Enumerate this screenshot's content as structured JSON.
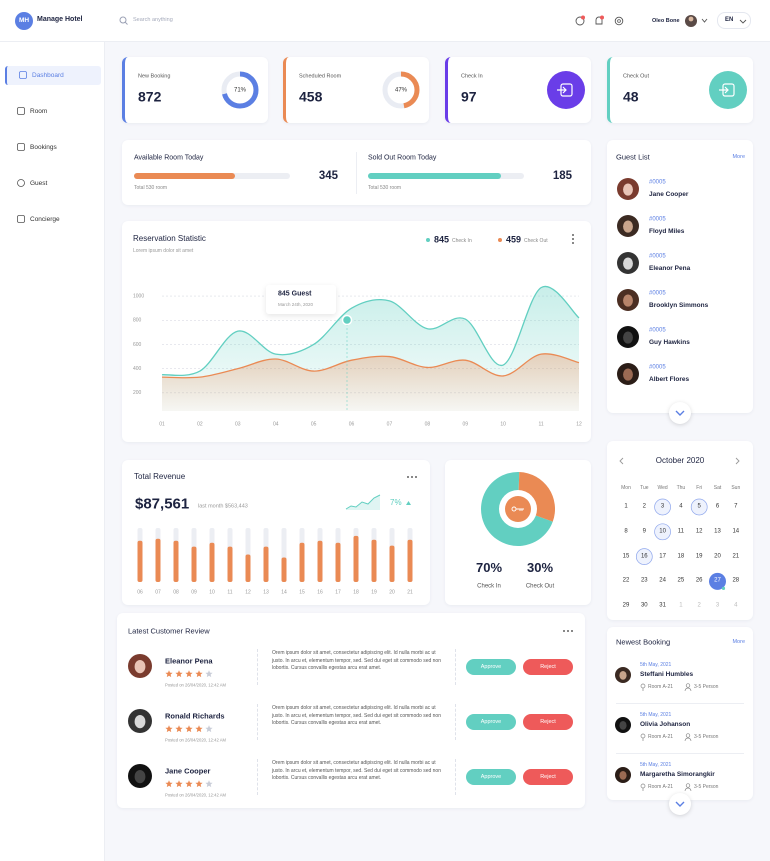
{
  "header": {
    "logo": "MH",
    "brand": "Manage Hotel",
    "search_placeholder": "Search anything",
    "user": "Oleo Bone",
    "language": "EN"
  },
  "sidebar": {
    "items": [
      "Dashboard",
      "Room",
      "Bookings",
      "Guest",
      "Concierge"
    ],
    "active": 0
  },
  "stats": [
    {
      "label": "New Booking",
      "value": 872,
      "percent": 71,
      "percent_label": "71%",
      "color": "#5b7fe3"
    },
    {
      "label": "Scheduled Room",
      "value": 458,
      "percent": 47,
      "percent_label": "47%",
      "color": "#ea8a54"
    },
    {
      "label": "Check In",
      "value": 97,
      "color": "#6a3de8"
    },
    {
      "label": "Check Out",
      "value": 48,
      "color": "#62cfc1"
    }
  ],
  "rooms": [
    {
      "title": "Available Room Today",
      "value": 345,
      "note": "Total 530 room",
      "fill": 65,
      "color": "#ea8a54"
    },
    {
      "title": "Sold Out Room Today",
      "value": 185,
      "note": "Total 530 room",
      "fill": 85,
      "color": "#62cfc1"
    }
  ],
  "reservation": {
    "type": "line",
    "title": "Reservation Statistic",
    "subtitle": "Lorem ipsum dolor sit amet",
    "categories": [
      "01",
      "02",
      "03",
      "04",
      "05",
      "06",
      "07",
      "08",
      "09",
      "10",
      "11",
      "12"
    ],
    "series": [
      {
        "name": "Check In",
        "total": 845,
        "color": "#62cfc1",
        "values": [
          350,
          380,
          710,
          520,
          600,
          900,
          960,
          730,
          810,
          430,
          1070,
          820
        ]
      },
      {
        "name": "Check Out",
        "total": 459,
        "color": "#ea8a54",
        "values": [
          330,
          330,
          400,
          480,
          380,
          470,
          500,
          410,
          470,
          340,
          520,
          450
        ]
      }
    ],
    "ylim": [
      50,
      1100
    ],
    "yticks": [
      200,
      400,
      600,
      800,
      1000
    ],
    "grid": true,
    "tooltip": {
      "title": "845 Guest",
      "date": "March 24th, 2020"
    }
  },
  "revenue": {
    "type": "bar",
    "title": "Total Revenue",
    "amount": "$87,561",
    "last_month": "last month $563,443",
    "change": "7%",
    "categories": [
      "06",
      "07",
      "08",
      "09",
      "10",
      "11",
      "12",
      "13",
      "14",
      "15",
      "16",
      "17",
      "18",
      "19",
      "20",
      "21"
    ],
    "values": [
      42,
      44,
      42,
      36,
      40,
      36,
      28,
      36,
      25,
      40,
      42,
      40,
      47,
      43,
      37,
      43
    ],
    "ylim": [
      0,
      55
    ],
    "color": "#ea8a54"
  },
  "occupancy": {
    "type": "pie",
    "categories": [
      "Check In",
      "Check Out"
    ],
    "values": [
      70,
      30
    ],
    "value_labels": [
      "70%",
      "30%"
    ],
    "colors": [
      "#62cfc1",
      "#ea8a54"
    ]
  },
  "reviews": {
    "title": "Latest Customer Review",
    "approve": "Approve",
    "reject": "Reject",
    "max_rating": 5,
    "items": [
      {
        "name": "Eleanor Pena",
        "rating": 4,
        "posted": "Posted on 26/04/2020, 12:42 AM",
        "text": "Orem ipsum dolor sit amet, consectetur adipiscing elit. Id nulla morbi ac ut justo. In arcu et, elementum tempor, sed. Sed dui eget sit commodo sed non lobortis. Cursus convallis egestas arcu erat amet."
      },
      {
        "name": "Ronald Richards",
        "rating": 4,
        "posted": "Posted on 26/04/2020, 12:42 AM",
        "text": "Orem ipsum dolor sit amet, consectetur adipiscing elit. Id nulla morbi ac ut justo. In arcu et, elementum tempor, sed. Sed dui eget sit commodo sed non lobortis. Cursus convallis egestas arcu erat amet."
      },
      {
        "name": "Jane Cooper",
        "rating": 4,
        "posted": "Posted on 26/04/2020, 12:42 AM",
        "text": "Orem ipsum dolor sit amet, consectetur adipiscing elit. Id nulla morbi ac ut justo. In arcu et, elementum tempor, sed. Sed dui eget sit commodo sed non lobortis. Cursus convallis egestas arcu erat amet."
      }
    ]
  },
  "guests": {
    "title": "Guest List",
    "more": "More",
    "items": [
      {
        "id": "#0005",
        "name": "Jane Cooper"
      },
      {
        "id": "#0005",
        "name": "Floyd Miles"
      },
      {
        "id": "#0005",
        "name": "Eleanor Pena"
      },
      {
        "id": "#0005",
        "name": "Brooklyn Simmons"
      },
      {
        "id": "#0005",
        "name": "Guy Hawkins"
      },
      {
        "id": "#0005",
        "name": "Albert Flores"
      }
    ]
  },
  "calendar": {
    "month": "October 2020",
    "weekdays": [
      "Mon",
      "Tue",
      "Wed",
      "Thu",
      "Fri",
      "Sat",
      "Sun"
    ],
    "days": [
      1,
      2,
      3,
      4,
      5,
      6,
      7,
      8,
      9,
      10,
      11,
      12,
      13,
      14,
      15,
      16,
      17,
      18,
      19,
      20,
      21,
      22,
      23,
      24,
      25,
      26,
      27,
      28,
      29,
      30,
      31
    ],
    "next_month_days": [
      1,
      2,
      3,
      4
    ],
    "outlined": [
      3,
      5,
      10,
      16
    ],
    "selected": 27
  },
  "bookings": {
    "title": "Newest Booking",
    "more": "More",
    "items": [
      {
        "date": "5th May, 2021",
        "name": "Steffani Humbles",
        "room": "Room A-21",
        "persons": "3-5 Person"
      },
      {
        "date": "5th May, 2021",
        "name": "Olivia Johanson",
        "room": "Room A-21",
        "persons": "3-5 Person"
      },
      {
        "date": "5th May, 2021",
        "name": "Margaretha Simorangkir",
        "room": "Room A-21",
        "persons": "3-5 Person"
      }
    ]
  }
}
